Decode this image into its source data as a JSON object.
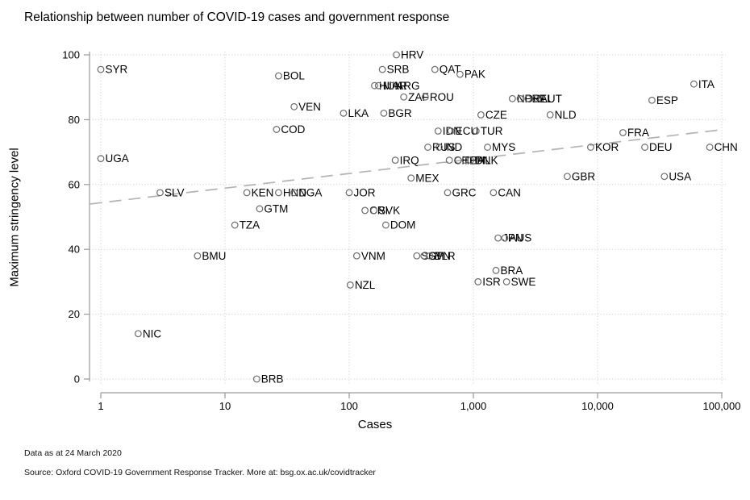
{
  "header": {
    "title": "Relationship between number of COVID-19 cases and government response"
  },
  "footer": {
    "line1": "Data as at 24 March 2020",
    "line2": "Source: Oxford COVID-19 Government Response Tracker. More at: bsg.ox.ac.uk/covidtracker"
  },
  "colors": {
    "marker": "#6b6b6b",
    "point_label": "#000000",
    "grid": "#c9c9c9",
    "axis": "#9a9a9a",
    "trend": "#b3b3b3",
    "background": "#ffffff"
  },
  "chart_data": {
    "type": "scatter",
    "title": "Relationship between number of COVID-19 cases and government response",
    "xlabel": "Cases",
    "ylabel": "Maximum stringency level",
    "x_scale": "log",
    "xlim": [
      1,
      100000
    ],
    "ylim": [
      0,
      100
    ],
    "x_ticks": [
      {
        "value": 1,
        "label": "1"
      },
      {
        "value": 10,
        "label": "10"
      },
      {
        "value": 100,
        "label": "100"
      },
      {
        "value": 1000,
        "label": "1,000"
      },
      {
        "value": 10000,
        "label": "10,000"
      },
      {
        "value": 100000,
        "label": "100,000"
      }
    ],
    "y_ticks": [
      {
        "value": 0,
        "label": "0"
      },
      {
        "value": 20,
        "label": "20"
      },
      {
        "value": 40,
        "label": "40"
      },
      {
        "value": 60,
        "label": "60"
      },
      {
        "value": 80,
        "label": "80"
      },
      {
        "value": 100,
        "label": "100"
      }
    ],
    "grid": "dotted",
    "legend": "none",
    "trend_line": {
      "style": "dashed",
      "x1_cases": 0.82,
      "y1": 54,
      "x2_cases": 104500,
      "y2": 77
    },
    "points": [
      {
        "code": "SYR",
        "cases": 1,
        "stringency": 95.5
      },
      {
        "code": "UGA",
        "cases": 1,
        "stringency": 68
      },
      {
        "code": "NIC",
        "cases": 2,
        "stringency": 14
      },
      {
        "code": "SLV",
        "cases": 3,
        "stringency": 57.5
      },
      {
        "code": "BMU",
        "cases": 6,
        "stringency": 38
      },
      {
        "code": "TZA",
        "cases": 12,
        "stringency": 47.5
      },
      {
        "code": "KEN",
        "cases": 15,
        "stringency": 57.5
      },
      {
        "code": "BRB",
        "cases": 18,
        "stringency": 0
      },
      {
        "code": "GTM",
        "cases": 19,
        "stringency": 52.5
      },
      {
        "code": "COD",
        "cases": 26,
        "stringency": 77
      },
      {
        "code": "HND",
        "cases": 27,
        "stringency": 57.5
      },
      {
        "code": "BOL",
        "cases": 27,
        "stringency": 93.5
      },
      {
        "code": "NGA",
        "cases": 36,
        "stringency": 57.5
      },
      {
        "code": "VEN",
        "cases": 36,
        "stringency": 84
      },
      {
        "code": "LKA",
        "cases": 90,
        "stringency": 82
      },
      {
        "code": "JOR",
        "cases": 100,
        "stringency": 57.5
      },
      {
        "code": "NZL",
        "cases": 102,
        "stringency": 29
      },
      {
        "code": "VNM",
        "cases": 115,
        "stringency": 38
      },
      {
        "code": "CRI",
        "cases": 134,
        "stringency": 52
      },
      {
        "code": "SVK",
        "cases": 158,
        "stringency": 52
      },
      {
        "code": "HUN",
        "cases": 160,
        "stringency": 90.5
      },
      {
        "code": "MAR",
        "cases": 172,
        "stringency": 90.5
      },
      {
        "code": "SRB",
        "cases": 185,
        "stringency": 95.5
      },
      {
        "code": "BGR",
        "cases": 190,
        "stringency": 82
      },
      {
        "code": "DOM",
        "cases": 197,
        "stringency": 47.5
      },
      {
        "code": "ARG",
        "cases": 220,
        "stringency": 90.5
      },
      {
        "code": "IRQ",
        "cases": 235,
        "stringency": 67.5
      },
      {
        "code": "HRV",
        "cases": 240,
        "stringency": 100
      },
      {
        "code": "ZAF",
        "cases": 275,
        "stringency": 87
      },
      {
        "code": "MEX",
        "cases": 315,
        "stringency": 62
      },
      {
        "code": "SGP",
        "cases": 350,
        "stringency": 38
      },
      {
        "code": "SVN",
        "cases": 400,
        "stringency": 38
      },
      {
        "code": "ROU",
        "cases": 410,
        "stringency": 87
      },
      {
        "code": "RUS",
        "cases": 430,
        "stringency": 71.5
      },
      {
        "code": "BLR",
        "cases": 445,
        "stringency": 38
      },
      {
        "code": "QAT",
        "cases": 490,
        "stringency": 95.5
      },
      {
        "code": "IDN",
        "cases": 520,
        "stringency": 76.5
      },
      {
        "code": "IND",
        "cases": 530,
        "stringency": 71.5
      },
      {
        "code": "GRC",
        "cases": 620,
        "stringency": 57.5
      },
      {
        "code": "CHL",
        "cases": 640,
        "stringency": 67.5
      },
      {
        "code": "ECU",
        "cases": 660,
        "stringency": 76.5
      },
      {
        "code": "THA",
        "cases": 755,
        "stringency": 67.5
      },
      {
        "code": "PAK",
        "cases": 780,
        "stringency": 94
      },
      {
        "code": "PHL",
        "cases": 860,
        "stringency": 67.5
      },
      {
        "code": "DNK",
        "cases": 950,
        "stringency": 67.5
      },
      {
        "code": "TUR",
        "cases": 1050,
        "stringency": 76.5
      },
      {
        "code": "ISR",
        "cases": 1090,
        "stringency": 30
      },
      {
        "code": "CZE",
        "cases": 1150,
        "stringency": 81.5
      },
      {
        "code": "MYS",
        "cases": 1300,
        "stringency": 71.5
      },
      {
        "code": "CAN",
        "cases": 1450,
        "stringency": 57.5
      },
      {
        "code": "BRA",
        "cases": 1520,
        "stringency": 33.5
      },
      {
        "code": "JPN",
        "cases": 1580,
        "stringency": 43.5
      },
      {
        "code": "AUS",
        "cases": 1790,
        "stringency": 43.5
      },
      {
        "code": "SWE",
        "cases": 1850,
        "stringency": 30
      },
      {
        "code": "NOR",
        "cases": 2060,
        "stringency": 86.5
      },
      {
        "code": "PRT",
        "cases": 2380,
        "stringency": 86.5
      },
      {
        "code": "BEL",
        "cases": 2750,
        "stringency": 86.5
      },
      {
        "code": "AUT",
        "cases": 3180,
        "stringency": 86.5
      },
      {
        "code": "NLD",
        "cases": 4150,
        "stringency": 81.5
      },
      {
        "code": "GBR",
        "cases": 5700,
        "stringency": 62.5
      },
      {
        "code": "KOR",
        "cases": 8800,
        "stringency": 71.5
      },
      {
        "code": "FRA",
        "cases": 16000,
        "stringency": 76
      },
      {
        "code": "DEU",
        "cases": 24000,
        "stringency": 71.5
      },
      {
        "code": "ESP",
        "cases": 27400,
        "stringency": 86
      },
      {
        "code": "USA",
        "cases": 34500,
        "stringency": 62.5
      },
      {
        "code": "ITA",
        "cases": 59600,
        "stringency": 91
      },
      {
        "code": "CHN",
        "cases": 80000,
        "stringency": 71.5
      }
    ]
  }
}
